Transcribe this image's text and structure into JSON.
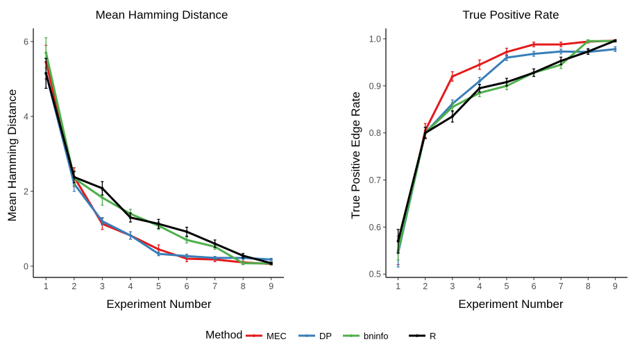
{
  "legend": {
    "title": "Method",
    "items": [
      {
        "name": "MEC",
        "color": "#E41A1C"
      },
      {
        "name": "DP",
        "color": "#377EB8"
      },
      {
        "name": "bninfo",
        "color": "#4DAF4A"
      },
      {
        "name": "R",
        "color": "#000000"
      }
    ]
  },
  "chart_data": [
    {
      "type": "line",
      "title": "Mean Hamming Distance",
      "xlabel": "Experiment Number",
      "ylabel": "Mean Hamming Distance",
      "x": [
        1,
        2,
        3,
        4,
        5,
        6,
        7,
        8,
        9
      ],
      "xlim": [
        0.55,
        9.45
      ],
      "ylim": [
        -0.3,
        6.35
      ],
      "yticks": [
        0,
        2,
        4,
        6
      ],
      "error_bars": true,
      "series": [
        {
          "name": "MEC",
          "color": "#E41A1C",
          "values": [
            5.45,
            2.38,
            1.13,
            0.82,
            0.45,
            0.2,
            0.18,
            0.1,
            0.06
          ],
          "err": [
            0.45,
            0.25,
            0.15,
            0.1,
            0.12,
            0.08,
            0.06,
            0.04,
            0.03
          ]
        },
        {
          "name": "DP",
          "color": "#377EB8",
          "values": [
            5.15,
            2.2,
            1.2,
            0.82,
            0.33,
            0.27,
            0.22,
            0.22,
            0.18
          ],
          "err": [
            0.4,
            0.2,
            0.1,
            0.1,
            0.05,
            0.05,
            0.04,
            0.04,
            0.03
          ]
        },
        {
          "name": "bninfo",
          "color": "#4DAF4A",
          "values": [
            5.7,
            2.35,
            1.83,
            1.4,
            1.08,
            0.7,
            0.52,
            0.08,
            0.07
          ],
          "err": [
            0.4,
            0.2,
            0.2,
            0.12,
            0.1,
            0.08,
            0.07,
            0.04,
            0.03
          ]
        },
        {
          "name": "R",
          "color": "#000000",
          "values": [
            5.15,
            2.38,
            2.08,
            1.3,
            1.13,
            0.92,
            0.6,
            0.28,
            0.08
          ],
          "err": [
            0.4,
            0.15,
            0.18,
            0.12,
            0.12,
            0.12,
            0.1,
            0.06,
            0.03
          ]
        }
      ]
    },
    {
      "type": "line",
      "title": "True Positive Rate",
      "xlabel": "Experiment Number",
      "ylabel": "True Positive Edge Rate",
      "x": [
        1,
        2,
        3,
        4,
        5,
        6,
        7,
        8,
        9
      ],
      "xlim": [
        0.55,
        9.45
      ],
      "ylim": [
        0.493,
        1.022
      ],
      "yticks": [
        0.5,
        0.6,
        0.7,
        0.8,
        0.9,
        1.0
      ],
      "ytick_labels": [
        "0.5",
        "0.6",
        "0.7",
        "0.8",
        "0.9",
        "1.0"
      ],
      "error_bars": true,
      "series": [
        {
          "name": "MEC",
          "color": "#E41A1C",
          "values": [
            0.55,
            0.805,
            0.92,
            0.945,
            0.972,
            0.988,
            0.988,
            0.994,
            0.996
          ],
          "err": [
            0.03,
            0.015,
            0.01,
            0.01,
            0.008,
            0.005,
            0.005,
            0.003,
            0.002
          ]
        },
        {
          "name": "DP",
          "color": "#377EB8",
          "values": [
            0.545,
            0.8,
            0.862,
            0.91,
            0.96,
            0.968,
            0.973,
            0.972,
            0.978
          ],
          "err": [
            0.03,
            0.012,
            0.008,
            0.008,
            0.006,
            0.005,
            0.005,
            0.005,
            0.005
          ]
        },
        {
          "name": "bninfo",
          "color": "#4DAF4A",
          "values": [
            0.55,
            0.8,
            0.855,
            0.885,
            0.9,
            0.928,
            0.945,
            0.995,
            0.995
          ],
          "err": [
            0.02,
            0.012,
            0.01,
            0.008,
            0.008,
            0.008,
            0.008,
            0.003,
            0.002
          ]
        },
        {
          "name": "R",
          "color": "#000000",
          "values": [
            0.57,
            0.8,
            0.835,
            0.895,
            0.908,
            0.928,
            0.953,
            0.973,
            0.996
          ],
          "err": [
            0.025,
            0.012,
            0.012,
            0.008,
            0.008,
            0.008,
            0.008,
            0.006,
            0.002
          ]
        }
      ]
    }
  ]
}
